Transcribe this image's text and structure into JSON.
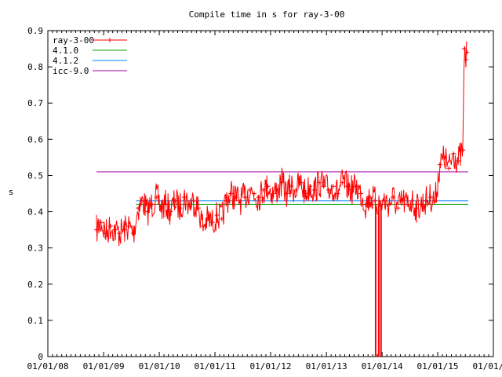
{
  "chart_data": {
    "type": "line",
    "title": "Compile time in s for ray-3-00",
    "xlabel": "",
    "ylabel": "s",
    "x_axis": {
      "type": "date",
      "range": [
        "2008-01-01",
        "2016-01-01"
      ],
      "tick_labels": [
        "01/01/08",
        "01/01/09",
        "01/01/10",
        "01/01/11",
        "01/01/12",
        "01/01/13",
        "01/01/14",
        "01/01/15",
        "01/01/16"
      ],
      "tick_dates": [
        "2008-01-01",
        "2009-01-01",
        "2010-01-01",
        "2011-01-01",
        "2012-01-01",
        "2013-01-01",
        "2014-01-01",
        "2015-01-01",
        "2016-01-01"
      ]
    },
    "y_axis": {
      "range": [
        0,
        0.9
      ],
      "tick_labels": [
        "0",
        "0.1",
        "0.2",
        "0.3",
        "0.4",
        "0.5",
        "0.6",
        "0.7",
        "0.8",
        "0.9"
      ],
      "tick_values": [
        0,
        0.1,
        0.2,
        0.3,
        0.4,
        0.5,
        0.6,
        0.7,
        0.8,
        0.9
      ]
    },
    "grid": false,
    "legend_position": "top-left",
    "series": [
      {
        "name": "ray-3-00",
        "color": "#ff0000",
        "marker": "plus",
        "points": [
          [
            "2008-11-15",
            0.35
          ],
          [
            "2008-12-15",
            0.37
          ],
          [
            "2009-01-15",
            0.34
          ],
          [
            "2009-02-15",
            0.36
          ],
          [
            "2009-03-15",
            0.35
          ],
          [
            "2009-04-15",
            0.34
          ],
          [
            "2009-05-15",
            0.35
          ],
          [
            "2009-06-15",
            0.36
          ],
          [
            "2009-07-15",
            0.34
          ],
          [
            "2009-08-15",
            0.41
          ],
          [
            "2009-09-15",
            0.43
          ],
          [
            "2009-10-15",
            0.4
          ],
          [
            "2009-11-15",
            0.42
          ],
          [
            "2009-12-15",
            0.44
          ],
          [
            "2010-01-15",
            0.41
          ],
          [
            "2010-02-15",
            0.42
          ],
          [
            "2010-03-15",
            0.4
          ],
          [
            "2010-04-15",
            0.43
          ],
          [
            "2010-05-15",
            0.41
          ],
          [
            "2010-06-15",
            0.44
          ],
          [
            "2010-07-15",
            0.42
          ],
          [
            "2010-08-15",
            0.43
          ],
          [
            "2010-09-15",
            0.41
          ],
          [
            "2010-10-15",
            0.36
          ],
          [
            "2010-11-15",
            0.38
          ],
          [
            "2010-12-15",
            0.37
          ],
          [
            "2011-01-15",
            0.39
          ],
          [
            "2011-02-15",
            0.38
          ],
          [
            "2011-03-15",
            0.43
          ],
          [
            "2011-04-15",
            0.45
          ],
          [
            "2011-05-15",
            0.44
          ],
          [
            "2011-06-15",
            0.43
          ],
          [
            "2011-07-15",
            0.44
          ],
          [
            "2011-08-15",
            0.46
          ],
          [
            "2011-09-15",
            0.45
          ],
          [
            "2011-10-15",
            0.44
          ],
          [
            "2011-11-15",
            0.46
          ],
          [
            "2011-12-15",
            0.47
          ],
          [
            "2012-01-15",
            0.45
          ],
          [
            "2012-02-15",
            0.46
          ],
          [
            "2012-03-15",
            0.48
          ],
          [
            "2012-04-15",
            0.45
          ],
          [
            "2012-05-15",
            0.47
          ],
          [
            "2012-06-15",
            0.46
          ],
          [
            "2012-07-15",
            0.48
          ],
          [
            "2012-08-15",
            0.45
          ],
          [
            "2012-09-15",
            0.47
          ],
          [
            "2012-10-15",
            0.46
          ],
          [
            "2012-11-15",
            0.48
          ],
          [
            "2012-12-15",
            0.47
          ],
          [
            "2013-01-15",
            0.46
          ],
          [
            "2013-02-15",
            0.47
          ],
          [
            "2013-03-15",
            0.45
          ],
          [
            "2013-04-15",
            0.48
          ],
          [
            "2013-05-15",
            0.47
          ],
          [
            "2013-06-15",
            0.46
          ],
          [
            "2013-07-15",
            0.47
          ],
          [
            "2013-08-15",
            0.45
          ],
          [
            "2013-09-15",
            0.42
          ],
          [
            "2013-10-15",
            0.44
          ],
          [
            "2013-11-15",
            0.43
          ],
          [
            "2013-12-15",
            0.42
          ],
          [
            "2014-01-15",
            0.43
          ],
          [
            "2014-02-15",
            0.42
          ],
          [
            "2014-03-15",
            0.44
          ],
          [
            "2014-04-15",
            0.41
          ],
          [
            "2014-05-15",
            0.43
          ],
          [
            "2014-06-15",
            0.42
          ],
          [
            "2014-07-15",
            0.43
          ],
          [
            "2014-08-15",
            0.41
          ],
          [
            "2014-09-15",
            0.42
          ],
          [
            "2014-10-15",
            0.43
          ],
          [
            "2014-11-15",
            0.44
          ],
          [
            "2014-12-15",
            0.43
          ],
          [
            "2015-01-15",
            0.53
          ],
          [
            "2015-02-15",
            0.55
          ],
          [
            "2015-03-15",
            0.52
          ],
          [
            "2015-04-15",
            0.56
          ],
          [
            "2015-05-15",
            0.54
          ],
          [
            "2015-06-15",
            0.57
          ],
          [
            "2015-06-25",
            0.85
          ],
          [
            "2015-07-05",
            0.82
          ],
          [
            "2015-07-12",
            0.84
          ]
        ],
        "dropouts": [
          [
            "2013-11-20",
            0.0
          ],
          [
            "2013-12-10",
            0.0
          ],
          [
            "2013-12-25",
            0.0
          ]
        ]
      },
      {
        "name": "4.1.0",
        "color": "#00a000",
        "constant": 0.42,
        "x_range": [
          "2009-08-01",
          "2015-07-20"
        ]
      },
      {
        "name": "4.1.2",
        "color": "#0080ff",
        "constant": 0.43,
        "x_range": [
          "2009-08-01",
          "2015-07-20"
        ]
      },
      {
        "name": "icc-9.0",
        "color": "#a000a0",
        "constant": 0.51,
        "x_range": [
          "2008-11-15",
          "2015-07-20"
        ]
      }
    ]
  }
}
